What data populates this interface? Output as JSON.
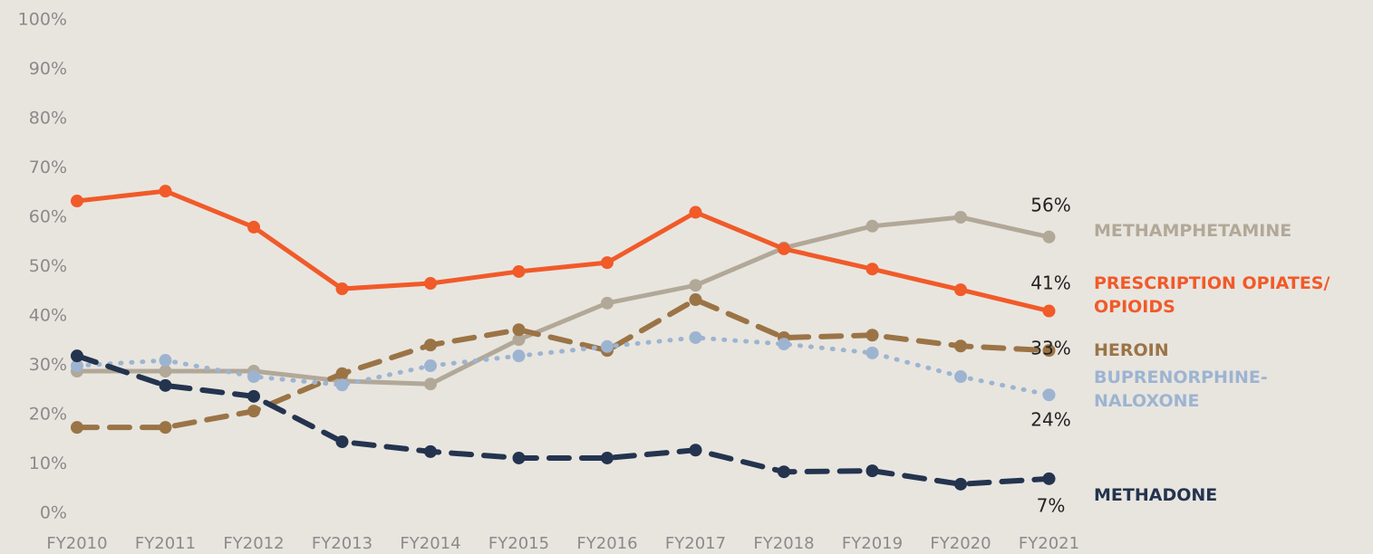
{
  "chart_data": {
    "type": "line",
    "x": [
      "FY2010",
      "FY2011",
      "FY2012",
      "FY2013",
      "FY2014",
      "FY2015",
      "FY2016",
      "FY2017",
      "FY2018",
      "FY2019",
      "FY2020",
      "FY2021"
    ],
    "ylim": [
      0,
      100
    ],
    "yticks": [
      {
        "value": 0,
        "label": "0%"
      },
      {
        "value": 10,
        "label": "10%"
      },
      {
        "value": 20,
        "label": "20%"
      },
      {
        "value": 30,
        "label": "30%"
      },
      {
        "value": 40,
        "label": "40%"
      },
      {
        "value": 50,
        "label": "50%"
      },
      {
        "value": 60,
        "label": "60%"
      },
      {
        "value": 70,
        "label": "70%"
      },
      {
        "value": 80,
        "label": "80%"
      },
      {
        "value": 90,
        "label": "90%"
      },
      {
        "value": 100,
        "label": "100%"
      }
    ],
    "series": [
      {
        "name": "METHAMPHETAMINE",
        "color": "#b2a898",
        "line_style": "solid",
        "values": [
          28.8,
          28.8,
          28.8,
          26.8,
          26.2,
          35.2,
          42.6,
          46.2,
          53.8,
          58.2,
          60,
          56
        ],
        "value_labels": [
          null,
          null,
          null,
          null,
          null,
          null,
          null,
          null,
          null,
          null,
          null,
          "56%"
        ]
      },
      {
        "name": "PRESCRIPTION OPIATES/ OPIOIDS",
        "color": "#f15a29",
        "line_style": "solid",
        "values": [
          63.3,
          65.3,
          58,
          45.5,
          46.6,
          49,
          50.8,
          61,
          53.6,
          49.5,
          45.3,
          41
        ],
        "value_labels": [
          null,
          null,
          null,
          null,
          null,
          null,
          null,
          null,
          null,
          null,
          null,
          "41%"
        ]
      },
      {
        "name": "HEROIN",
        "color": "#9b7446",
        "line_style": "dashed",
        "values": [
          17.4,
          17.4,
          20.7,
          28.3,
          34.1,
          37.2,
          33,
          43.3,
          35.6,
          36.1,
          33.9,
          33
        ],
        "value_labels": [
          null,
          null,
          null,
          null,
          null,
          null,
          null,
          null,
          null,
          null,
          null,
          "33%"
        ]
      },
      {
        "name": "BUPRENORPHINE-NALOXONE",
        "color": "#9db4d1",
        "line_style": "dotted",
        "values": [
          29.9,
          31,
          27.7,
          26,
          29.9,
          31.9,
          33.8,
          35.6,
          34.3,
          32.5,
          27.7,
          24
        ],
        "value_labels": [
          null,
          null,
          null,
          null,
          null,
          null,
          null,
          null,
          null,
          null,
          null,
          "24%"
        ]
      },
      {
        "name": "METHADONE",
        "color": "#24344f",
        "line_style": "dashed",
        "values": [
          31.9,
          25.9,
          23.7,
          14.5,
          12.5,
          11.2,
          11.2,
          12.8,
          8.4,
          8.6,
          5.9,
          7
        ],
        "value_labels": [
          null,
          null,
          null,
          null,
          null,
          null,
          null,
          null,
          null,
          null,
          null,
          "7%"
        ]
      }
    ]
  }
}
